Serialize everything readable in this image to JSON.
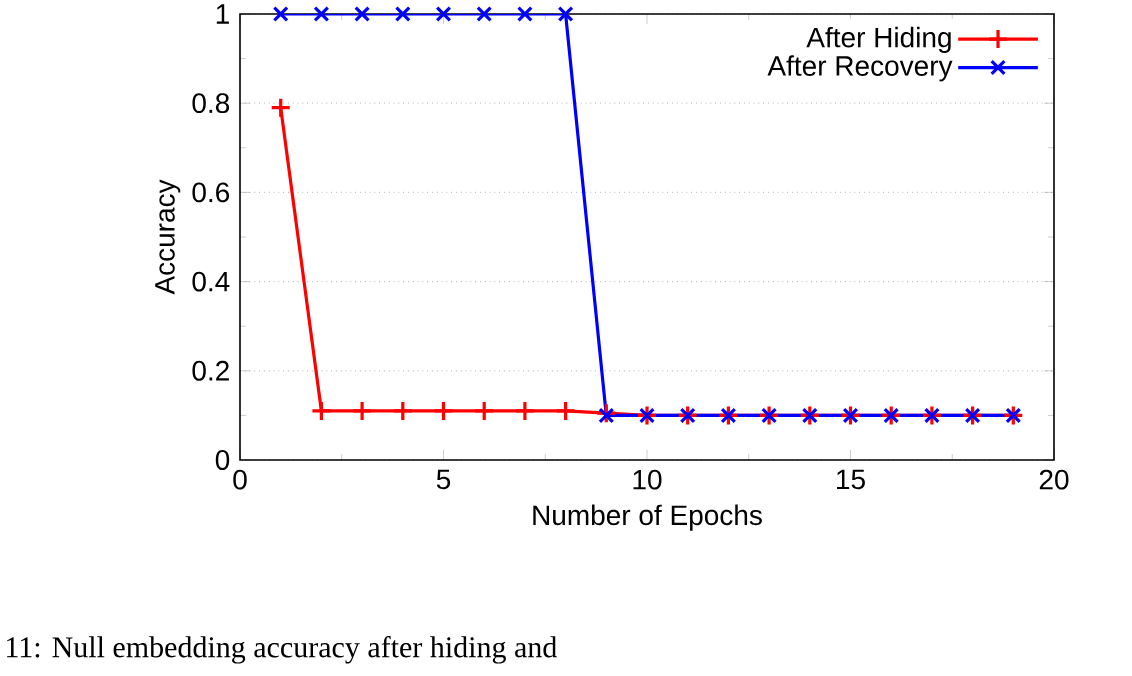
{
  "chart_data": {
    "type": "line",
    "xlabel": "Number of Epochs",
    "ylabel": "Accuracy",
    "x": [
      1,
      2,
      3,
      4,
      5,
      6,
      7,
      8,
      9,
      10,
      11,
      12,
      13,
      14,
      15,
      16,
      17,
      18,
      19
    ],
    "series": [
      {
        "name": "After Hiding",
        "color": "#ff0000",
        "marker": "plus",
        "values": [
          0.79,
          0.11,
          0.11,
          0.11,
          0.11,
          0.11,
          0.11,
          0.11,
          0.105,
          0.1,
          0.1,
          0.1,
          0.1,
          0.1,
          0.1,
          0.1,
          0.1,
          0.1,
          0.1
        ]
      },
      {
        "name": "After Recovery",
        "color": "#0000ff",
        "marker": "cross",
        "values": [
          1.0,
          1.0,
          1.0,
          1.0,
          1.0,
          1.0,
          1.0,
          1.0,
          0.1,
          0.1,
          0.1,
          0.1,
          0.1,
          0.1,
          0.1,
          0.1,
          0.1,
          0.1,
          0.1
        ]
      }
    ],
    "xlim": [
      0,
      20
    ],
    "xticks": [
      0,
      5,
      10,
      15,
      20
    ],
    "ylim": [
      0,
      1
    ],
    "yticks": [
      0,
      0.2,
      0.4,
      0.6,
      0.8,
      1
    ],
    "grid": "y",
    "legend": "top right",
    "line_style": "solid",
    "annotations": [
      "11: Null embedding accuracy after hiding and"
    ]
  }
}
